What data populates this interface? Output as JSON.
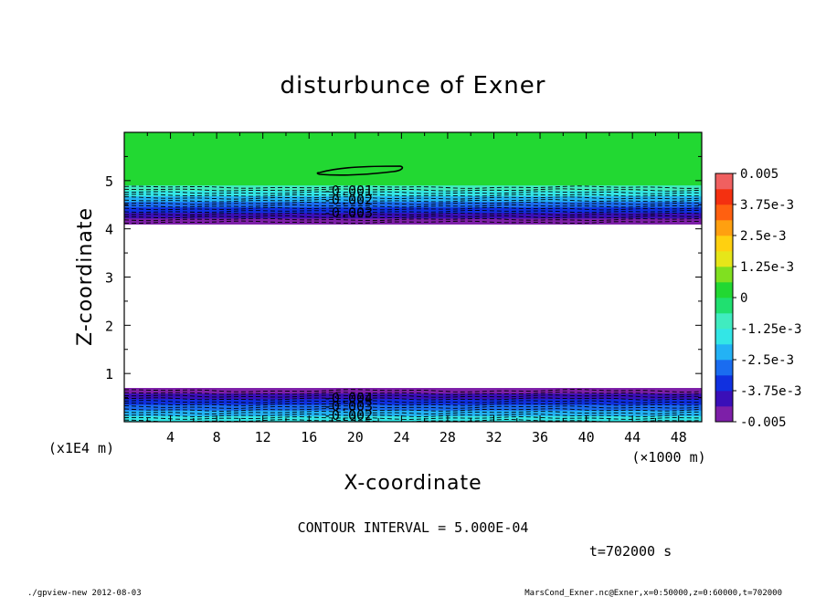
{
  "chart_data": {
    "type": "heatmap",
    "title": "disturbunce of Exner",
    "xlabel": "X-coordinate",
    "ylabel": "Z-coordinate",
    "x_unit": "(×1000 m)",
    "y_unit": "(x1E4 m)",
    "xlim": [
      0,
      50
    ],
    "ylim": [
      0,
      6
    ],
    "x_ticks": [
      "4",
      "8",
      "12",
      "16",
      "20",
      "24",
      "28",
      "32",
      "36",
      "40",
      "44",
      "48"
    ],
    "y_ticks": [
      "1",
      "2",
      "3",
      "4",
      "5"
    ],
    "contour_interval_label": "CONTOUR INTERVAL = 5.000E-04",
    "time_label": "t=702000 s",
    "colorbar": {
      "labels": [
        "0.005",
        "3.75e-3",
        "2.5e-3",
        "1.25e-3",
        "0",
        "-1.25e-3",
        "-2.5e-3",
        "-3.75e-3",
        "-0.005"
      ],
      "range": [
        -0.005,
        0.005
      ],
      "colors": [
        "#7d1fa8",
        "#3a0fb8",
        "#1030e0",
        "#1a6cf0",
        "#23b2f5",
        "#33e6e6",
        "#40ecc0",
        "#20e070",
        "#22d832",
        "#80e020",
        "#e6e619",
        "#ffd010",
        "#ffa010",
        "#ff6010",
        "#f43010",
        "#f06060"
      ]
    },
    "bands": [
      {
        "name": "upper",
        "z_range": [
          4.1,
          4.9
        ],
        "min_value": -0.005
      },
      {
        "name": "lower",
        "z_range": [
          0,
          0.7
        ],
        "min_value": -0.005
      }
    ],
    "contour_labels": {
      "upper": [
        "-0.001",
        "-0.002",
        "-0.003"
      ],
      "lower": [
        "-0.004",
        "-0.003",
        "-0.002"
      ]
    }
  },
  "footer": {
    "left": "./gpview-new   2012-08-03",
    "right": "MarsCond_Exner.nc@Exner,x=0:50000,z=0:60000,t=702000"
  }
}
